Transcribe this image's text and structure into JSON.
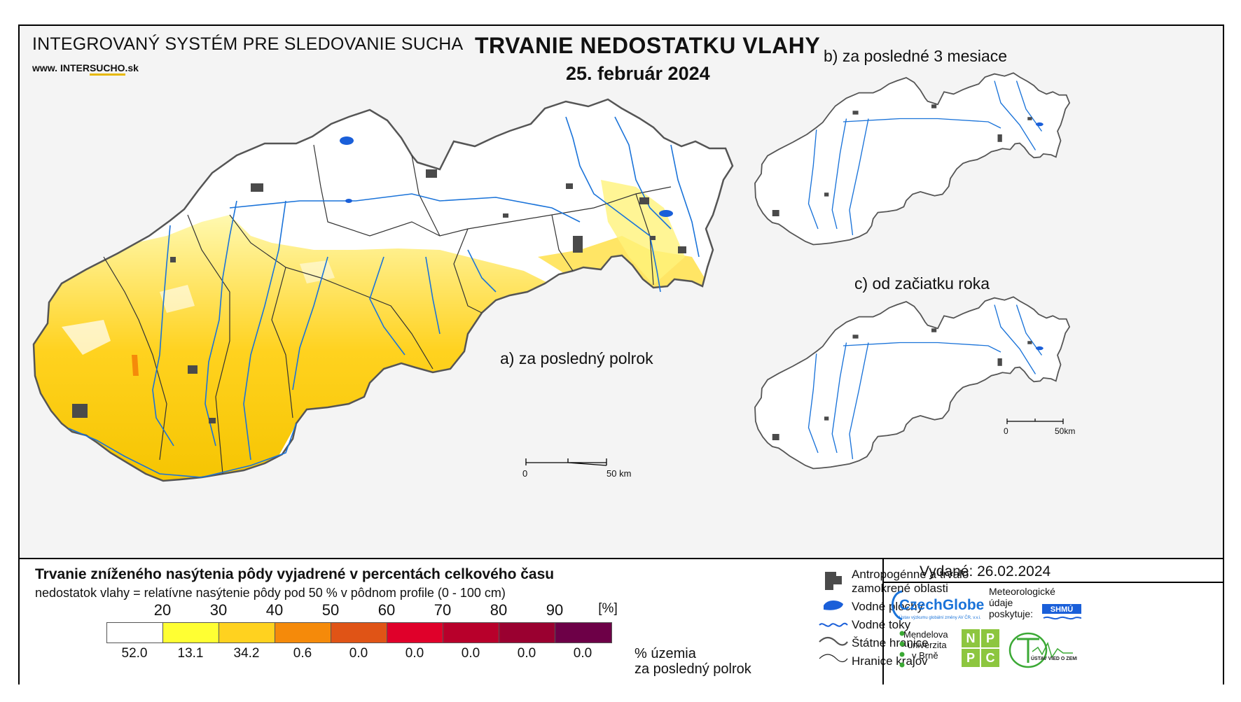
{
  "header": {
    "system_title": "INTEGROVANÝ SYSTÉM PRE SLEDOVANIE SUCHA",
    "website_prefix": "www.",
    "website_plain": "INTER",
    "website_underlined": "SUCHO",
    "website_suffix": ".sk",
    "main_title": "TRVANIE NEDOSTATKU VLAHY",
    "date": "25. február 2024"
  },
  "maps": {
    "main_caption": "a) za posledný polrok",
    "b_caption": "b) za posledné 3 mesiace",
    "c_caption": "c) od začiatku roka",
    "main_scale": {
      "zero": "0",
      "end": "50 km"
    },
    "small_scale": {
      "zero": "0",
      "end": "50km"
    }
  },
  "legend": {
    "title": "Trvanie zníženého nasýtenia pôdy vyjadrené v percentách celkového času",
    "subtitle": "nedostatok vlahy = relatívne nasýtenie pôdy pod 50 % v pôdnom profile (0 - 100 cm)",
    "ticks": [
      "20",
      "30",
      "40",
      "50",
      "60",
      "70",
      "80",
      "90"
    ],
    "unit": "[%]",
    "colors": [
      "#ffffff",
      "#ffff33",
      "#ffd21f",
      "#f58a0a",
      "#e05416",
      "#e0002a",
      "#b8002b",
      "#9a0030",
      "#6d0047"
    ],
    "percentages": [
      "52.0",
      "13.1",
      "34.2",
      "0.6",
      "0.0",
      "0.0",
      "0.0",
      "0.0",
      "0.0"
    ],
    "pct_caption_line1": "% územia",
    "pct_caption_line2": "za posledný polrok"
  },
  "symbols": {
    "anthropogenic_line1": "Antropogénne a trvalo",
    "anthropogenic_line2": "zamokrené oblasti",
    "water_bodies": "Vodné plochy",
    "water_streams": "Vodné toky",
    "state_borders": "Štátne hranice",
    "region_borders": "Hranice krajov"
  },
  "issuer": {
    "issued": "Vydané: 26.02.2024",
    "czechglobe": "CzechGlobe",
    "czechglobe_sub": "Ústav výzkumu globální změny AV ČR, v.v.i.",
    "met_line1": "Meteorologické",
    "met_line2": "údaje",
    "met_line3": "poskytuje:",
    "shmu": "SHMÚ",
    "mendel_line1": "Mendelova",
    "mendel_line2": "univerzita",
    "mendel_line3": "v Brně",
    "npc": [
      "N",
      "P",
      "P",
      "C"
    ],
    "uvz": "ÚSTAV VIED O ZEMI"
  }
}
